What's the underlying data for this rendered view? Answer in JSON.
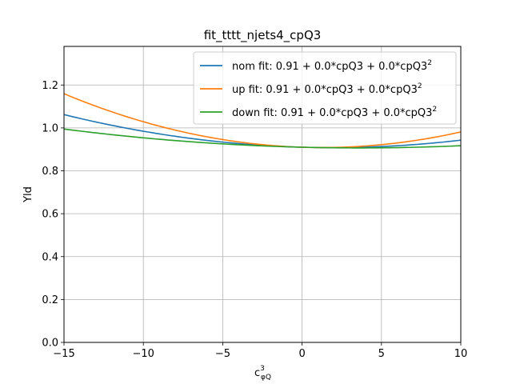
{
  "chart_data": {
    "type": "line",
    "title": "fit_tttt_njets4_cpQ3",
    "xlabel": "c",
    "xlabel_sup": "3",
    "xlabel_sub": "φQ",
    "ylabel": "Yld",
    "xlim": [
      -15,
      10
    ],
    "ylim": [
      0.0,
      1.38
    ],
    "xticks": [
      -15,
      -10,
      -5,
      0,
      5,
      10
    ],
    "xtick_labels": [
      "−15",
      "−10",
      "−5",
      "0",
      "5",
      "10"
    ],
    "yticks": [
      0.0,
      0.2,
      0.4,
      0.6,
      0.8,
      1.0,
      1.2
    ],
    "ytick_labels": [
      "0.0",
      "0.2",
      "0.4",
      "0.6",
      "0.8",
      "1.0",
      "1.2"
    ],
    "grid": true,
    "legend_position": "top-right",
    "series": [
      {
        "name": "nom fit: 0.91 + 0.0*cpQ3 + 0.0*cpQ3",
        "name_sup": "2",
        "color": "#1f77b4",
        "a": 0.91,
        "b": -0.00208,
        "c": 0.000537
      },
      {
        "name": "up fit: 0.91 + 0.0*cpQ3 + 0.0*cpQ3",
        "name_sup": "2",
        "color": "#ff7f0e",
        "a": 0.91,
        "b": -0.00238,
        "c": 0.00095
      },
      {
        "name": "down fit: 0.91 + 0.0*cpQ3 + 0.0*cpQ3",
        "name_sup": "2",
        "color": "#2ca02c",
        "a": 0.91,
        "b": -0.00184,
        "c": 0.000254
      }
    ]
  }
}
